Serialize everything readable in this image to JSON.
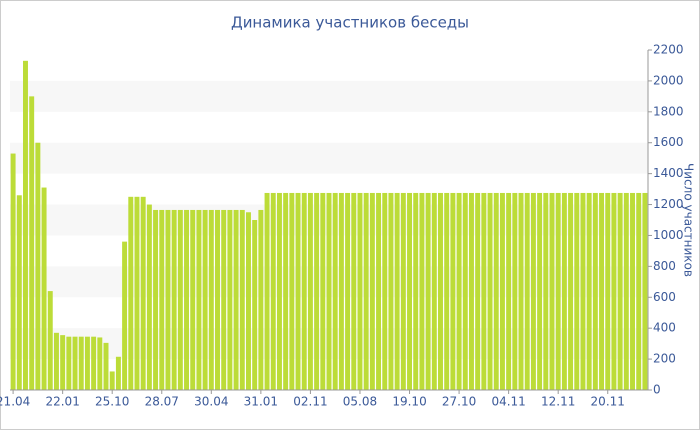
{
  "chart_data": {
    "type": "bar",
    "title": "Динамика участников беседы",
    "y_label": "Число участников",
    "categories": [
      "21.04",
      null,
      null,
      null,
      null,
      null,
      null,
      null,
      "22.01",
      null,
      null,
      null,
      null,
      null,
      null,
      null,
      "25.10",
      null,
      null,
      null,
      null,
      null,
      null,
      null,
      "28.07",
      null,
      null,
      null,
      null,
      null,
      null,
      null,
      "30.04",
      null,
      null,
      null,
      null,
      null,
      null,
      null,
      "31.01",
      null,
      null,
      null,
      null,
      null,
      null,
      null,
      "02.11",
      null,
      null,
      null,
      null,
      null,
      null,
      null,
      "05.08",
      null,
      null,
      null,
      null,
      null,
      null,
      null,
      "19.10",
      null,
      null,
      null,
      null,
      null,
      null,
      null,
      "27.10",
      null,
      null,
      null,
      null,
      null,
      null,
      null,
      "04.11",
      null,
      null,
      null,
      null,
      null,
      null,
      null,
      "12.11",
      null,
      null,
      null,
      null,
      null,
      null,
      null,
      "20.11",
      null,
      null,
      null,
      null,
      null,
      null
    ],
    "values": [
      1530,
      1260,
      2130,
      1900,
      1600,
      1310,
      640,
      370,
      355,
      345,
      345,
      345,
      345,
      345,
      340,
      305,
      120,
      215,
      960,
      1250,
      1250,
      1250,
      1200,
      1165,
      1165,
      1165,
      1165,
      1165,
      1165,
      1165,
      1165,
      1165,
      1165,
      1165,
      1165,
      1165,
      1165,
      1165,
      1150,
      1100,
      1165,
      1275,
      1275,
      1275,
      1275,
      1275,
      1275,
      1275,
      1275,
      1275,
      1275,
      1275,
      1275,
      1275,
      1275,
      1275,
      1275,
      1275,
      1275,
      1275,
      1275,
      1275,
      1275,
      1275,
      1275,
      1275,
      1275,
      1275,
      1275,
      1275,
      1275,
      1275,
      1275,
      1275,
      1275,
      1275,
      1275,
      1275,
      1275,
      1275,
      1275,
      1275,
      1275,
      1275,
      1275,
      1275,
      1275,
      1275,
      1275,
      1275,
      1275,
      1275,
      1275,
      1275,
      1275,
      1275,
      1275,
      1275,
      1275,
      1275,
      1275,
      1275,
      1275
    ],
    "color": "#bcdc38",
    "ylim": [
      0,
      2200
    ],
    "yticks": [
      0,
      200,
      400,
      600,
      800,
      1000,
      1200,
      1400,
      1600,
      1800,
      2000,
      2200
    ],
    "grid": "bands"
  }
}
